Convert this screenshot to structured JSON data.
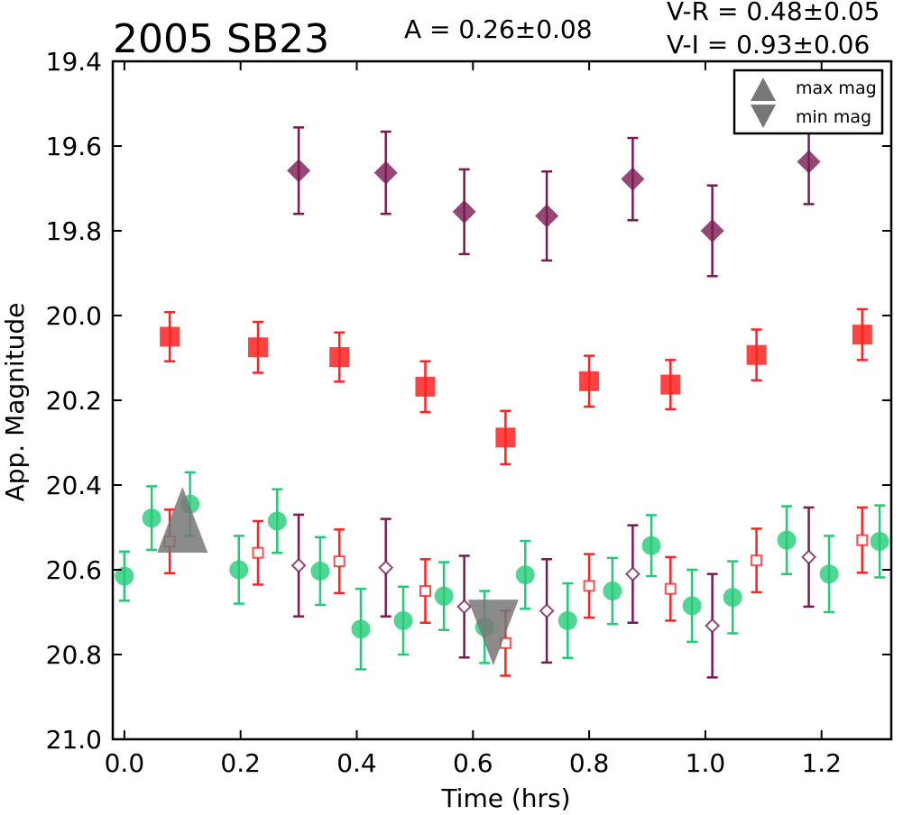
{
  "chart_data": {
    "type": "scatter",
    "title": "2005 SB23",
    "annotations": {
      "amplitude": "A  = 0.26±0.08",
      "v_r": "V-R = 0.48±0.05",
      "v_i": "V-I  = 0.93±0.06"
    },
    "xlabel": "Time (hrs)",
    "ylabel": "App. Magnitude",
    "xlim": [
      -0.02,
      1.32
    ],
    "ylim": [
      19.4,
      21.0
    ],
    "y_inverted": true,
    "grid": false,
    "x_ticks": [
      "0.0",
      "0.2",
      "0.4",
      "0.6",
      "0.8",
      "1.0",
      "1.2"
    ],
    "y_ticks": [
      "19.4",
      "19.6",
      "19.8",
      "20.0",
      "20.2",
      "20.4",
      "20.6",
      "20.8",
      "21.0"
    ],
    "legend": {
      "placement": "top-right",
      "entries": [
        {
          "label": "max mag",
          "marker": "triangle-up"
        },
        {
          "label": "min mag",
          "marker": "triangle-down"
        }
      ]
    },
    "colors": {
      "green": "#22cc77",
      "red": "#ff2222",
      "purple": "#7a1a52",
      "marker_gray": "#777777"
    },
    "series": [
      {
        "color": "green",
        "marker": "circle",
        "points": [
          {
            "x": 0.0,
            "y": 20.615,
            "err": 0.058
          },
          {
            "x": 0.047,
            "y": 20.478,
            "err": 0.075
          },
          {
            "x": 0.113,
            "y": 20.445,
            "err": 0.075
          },
          {
            "x": 0.197,
            "y": 20.6,
            "err": 0.08
          },
          {
            "x": 0.263,
            "y": 20.485,
            "err": 0.075
          },
          {
            "x": 0.337,
            "y": 20.603,
            "err": 0.08
          },
          {
            "x": 0.407,
            "y": 20.74,
            "err": 0.095
          },
          {
            "x": 0.48,
            "y": 20.72,
            "err": 0.08
          },
          {
            "x": 0.55,
            "y": 20.662,
            "err": 0.08
          },
          {
            "x": 0.62,
            "y": 20.735,
            "err": 0.085
          },
          {
            "x": 0.69,
            "y": 20.612,
            "err": 0.08
          },
          {
            "x": 0.763,
            "y": 20.72,
            "err": 0.088
          },
          {
            "x": 0.84,
            "y": 20.65,
            "err": 0.078
          },
          {
            "x": 0.907,
            "y": 20.543,
            "err": 0.072
          },
          {
            "x": 0.977,
            "y": 20.685,
            "err": 0.085
          },
          {
            "x": 1.047,
            "y": 20.665,
            "err": 0.085
          },
          {
            "x": 1.14,
            "y": 20.53,
            "err": 0.08
          },
          {
            "x": 1.213,
            "y": 20.61,
            "err": 0.09
          },
          {
            "x": 1.3,
            "y": 20.533,
            "err": 0.085
          }
        ]
      },
      {
        "color": "red",
        "marker": "square",
        "points": [
          {
            "x": 0.078,
            "y": 20.05,
            "err": 0.058
          },
          {
            "x": 0.23,
            "y": 20.075,
            "err": 0.06
          },
          {
            "x": 0.37,
            "y": 20.098,
            "err": 0.058
          },
          {
            "x": 0.518,
            "y": 20.168,
            "err": 0.06
          },
          {
            "x": 0.656,
            "y": 20.288,
            "err": 0.063
          },
          {
            "x": 0.8,
            "y": 20.155,
            "err": 0.06
          },
          {
            "x": 0.94,
            "y": 20.163,
            "err": 0.058
          },
          {
            "x": 1.088,
            "y": 20.093,
            "err": 0.06
          },
          {
            "x": 1.27,
            "y": 20.045,
            "err": 0.06
          }
        ]
      },
      {
        "color": "red",
        "marker": "square-open",
        "points": [
          {
            "x": 0.078,
            "y": 20.533,
            "err": 0.075
          },
          {
            "x": 0.23,
            "y": 20.56,
            "err": 0.075
          },
          {
            "x": 0.37,
            "y": 20.58,
            "err": 0.075
          },
          {
            "x": 0.518,
            "y": 20.65,
            "err": 0.075
          },
          {
            "x": 0.656,
            "y": 20.773,
            "err": 0.077
          },
          {
            "x": 0.8,
            "y": 20.638,
            "err": 0.075
          },
          {
            "x": 0.94,
            "y": 20.645,
            "err": 0.075
          },
          {
            "x": 1.088,
            "y": 20.578,
            "err": 0.075
          },
          {
            "x": 1.27,
            "y": 20.53,
            "err": 0.077
          }
        ]
      },
      {
        "color": "purple",
        "marker": "diamond",
        "points": [
          {
            "x": 0.3,
            "y": 19.658,
            "err": 0.102
          },
          {
            "x": 0.45,
            "y": 19.663,
            "err": 0.097
          },
          {
            "x": 0.585,
            "y": 19.755,
            "err": 0.1
          },
          {
            "x": 0.727,
            "y": 19.765,
            "err": 0.105
          },
          {
            "x": 0.875,
            "y": 19.678,
            "err": 0.097
          },
          {
            "x": 1.012,
            "y": 19.8,
            "err": 0.107
          },
          {
            "x": 1.178,
            "y": 19.637,
            "err": 0.1
          }
        ]
      },
      {
        "color": "purple",
        "marker": "diamond-open",
        "points": [
          {
            "x": 0.3,
            "y": 20.59,
            "err": 0.12
          },
          {
            "x": 0.45,
            "y": 20.595,
            "err": 0.115
          },
          {
            "x": 0.585,
            "y": 20.687,
            "err": 0.12
          },
          {
            "x": 0.727,
            "y": 20.697,
            "err": 0.122
          },
          {
            "x": 0.875,
            "y": 20.61,
            "err": 0.115
          },
          {
            "x": 1.012,
            "y": 20.732,
            "err": 0.122
          },
          {
            "x": 1.178,
            "y": 20.57,
            "err": 0.117
          }
        ]
      }
    ],
    "max_mag_marker": {
      "x": 0.1,
      "y": 20.5
    },
    "min_mag_marker": {
      "x": 0.635,
      "y": 20.73
    }
  }
}
